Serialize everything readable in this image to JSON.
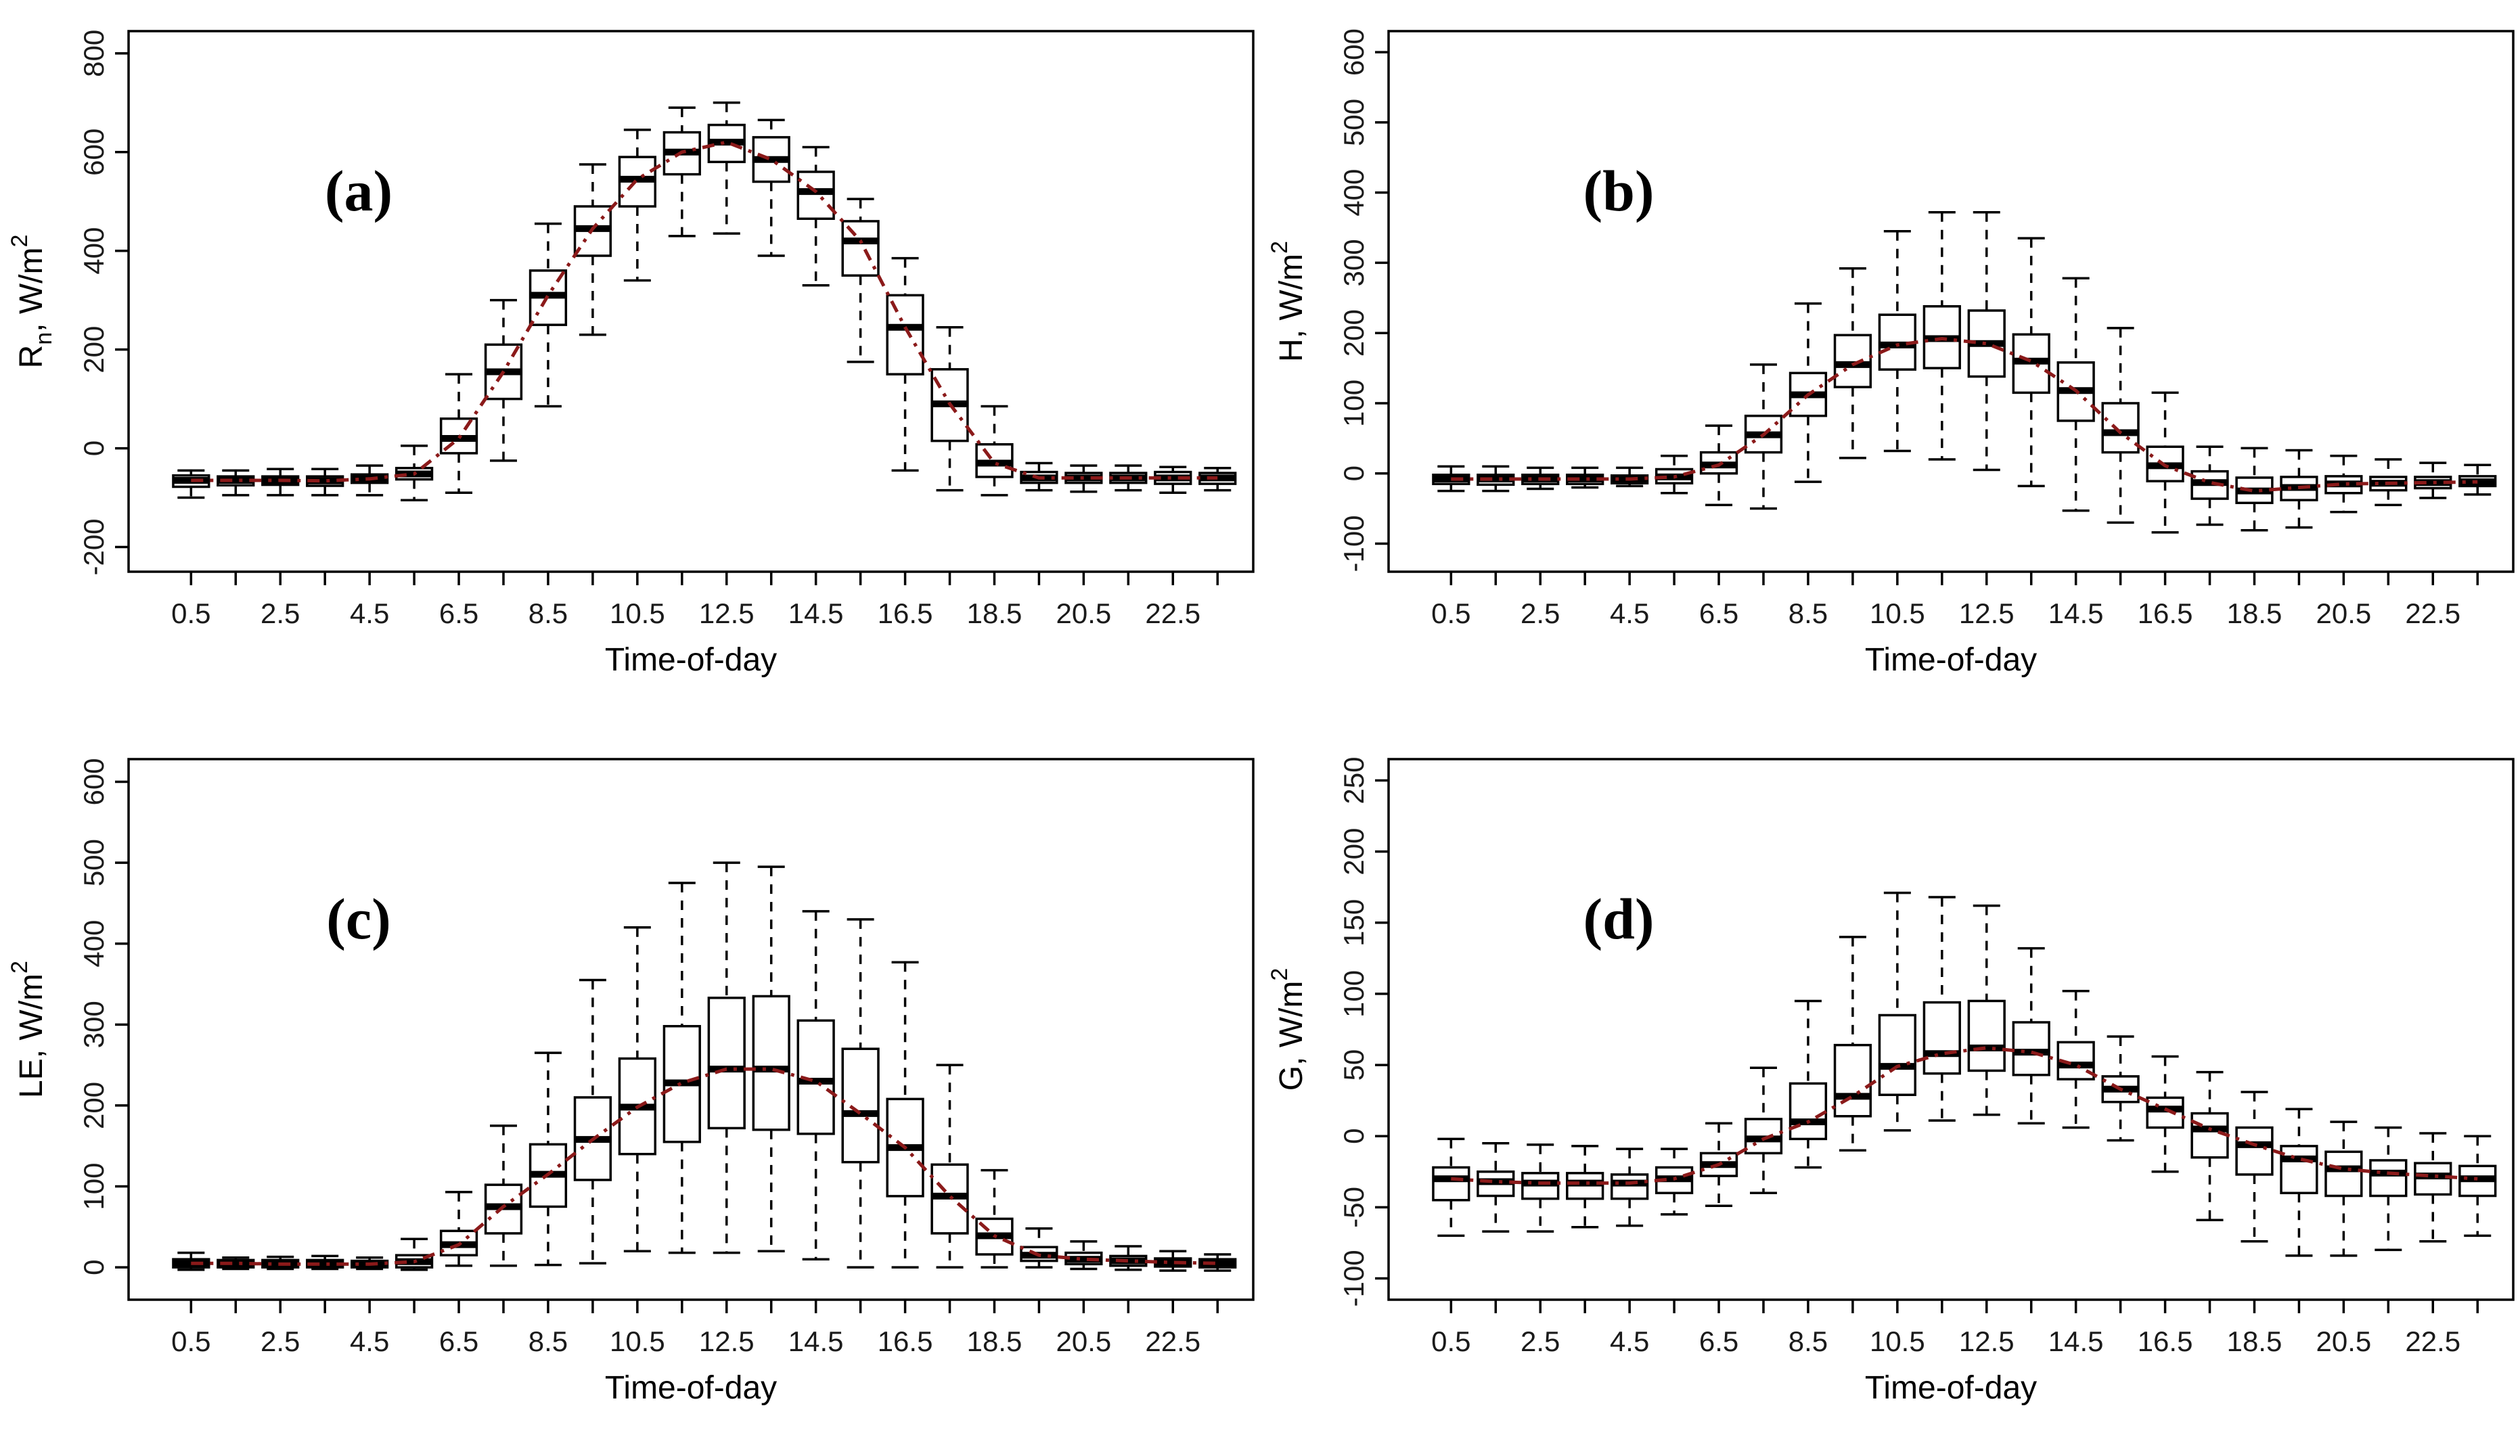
{
  "figure": {
    "background": "#ffffff",
    "xlabel": "Time-of-day",
    "panel_letters": [
      "(a)",
      "(b)",
      "(c)",
      "(d)"
    ]
  },
  "colors": {
    "box_stroke": "#000000",
    "median": "#000000",
    "whisker": "#000000",
    "axis": "#000000",
    "tick_label": "#1a1a1a",
    "trend_line": "#8B1A1A"
  },
  "chart_data": [
    {
      "type": "boxplot",
      "panel_label": "(a)",
      "xlabel": "Time-of-day",
      "ylabel_parts": [
        {
          "text": "R"
        },
        {
          "text": "n",
          "script": "sub"
        },
        {
          "text": ", W/m"
        },
        {
          "text": "2",
          "script": "sup"
        }
      ],
      "ylim": [
        -250,
        845
      ],
      "yticks": [
        -200,
        0,
        200,
        400,
        600,
        800
      ],
      "xlim": [
        -0.9,
        24.3
      ],
      "xtick_labels": [
        "0.5",
        "2.5",
        "4.5",
        "6.5",
        "8.5",
        "10.5",
        "12.5",
        "14.5",
        "16.5",
        "18.5",
        "20.5",
        "22.5"
      ],
      "x": [
        0.5,
        1.5,
        2.5,
        3.5,
        4.5,
        5.5,
        6.5,
        7.5,
        8.5,
        9.5,
        10.5,
        11.5,
        12.5,
        13.5,
        14.5,
        15.5,
        16.5,
        17.5,
        18.5,
        19.5,
        20.5,
        21.5,
        22.5,
        23.5
      ],
      "boxes_format": [
        "whisker_low",
        "q1",
        "median",
        "q3",
        "whisker_high"
      ],
      "boxes": [
        [
          -100,
          -78,
          -65,
          -55,
          -45
        ],
        [
          -95,
          -75,
          -65,
          -57,
          -45
        ],
        [
          -95,
          -74,
          -65,
          -57,
          -42
        ],
        [
          -95,
          -76,
          -66,
          -57,
          -42
        ],
        [
          -95,
          -70,
          -62,
          -53,
          -35
        ],
        [
          -105,
          -63,
          -52,
          -40,
          5
        ],
        [
          -90,
          -10,
          20,
          60,
          150
        ],
        [
          -25,
          100,
          155,
          210,
          300
        ],
        [
          85,
          250,
          310,
          360,
          455
        ],
        [
          230,
          390,
          445,
          490,
          575
        ],
        [
          340,
          490,
          545,
          590,
          645
        ],
        [
          430,
          555,
          600,
          640,
          690
        ],
        [
          435,
          580,
          620,
          655,
          700
        ],
        [
          390,
          540,
          585,
          630,
          665
        ],
        [
          330,
          465,
          520,
          560,
          610
        ],
        [
          175,
          350,
          420,
          460,
          505
        ],
        [
          -45,
          150,
          245,
          310,
          385
        ],
        [
          -85,
          15,
          90,
          160,
          245
        ],
        [
          -95,
          -58,
          -30,
          8,
          85
        ],
        [
          -85,
          -70,
          -60,
          -48,
          -30
        ],
        [
          -88,
          -70,
          -60,
          -50,
          -35
        ],
        [
          -85,
          -70,
          -60,
          -50,
          -35
        ],
        [
          -90,
          -72,
          -60,
          -48,
          -38
        ],
        [
          -85,
          -72,
          -60,
          -50,
          -40
        ]
      ],
      "trend_line": "through_medians"
    },
    {
      "type": "boxplot",
      "panel_label": "(b)",
      "xlabel": "Time-of-day",
      "ylabel_parts": [
        {
          "text": "H, W/m"
        },
        {
          "text": "2",
          "script": "sup"
        }
      ],
      "ylim": [
        -140,
        630
      ],
      "yticks": [
        -100,
        0,
        100,
        200,
        300,
        400,
        500,
        600
      ],
      "xlim": [
        -0.9,
        24.3
      ],
      "xtick_labels": [
        "0.5",
        "2.5",
        "4.5",
        "6.5",
        "8.5",
        "10.5",
        "12.5",
        "14.5",
        "16.5",
        "18.5",
        "20.5",
        "22.5"
      ],
      "x": [
        0.5,
        1.5,
        2.5,
        3.5,
        4.5,
        5.5,
        6.5,
        7.5,
        8.5,
        9.5,
        10.5,
        11.5,
        12.5,
        13.5,
        14.5,
        15.5,
        16.5,
        17.5,
        18.5,
        19.5,
        20.5,
        21.5,
        22.5,
        23.5
      ],
      "boxes_format": [
        "whisker_low",
        "q1",
        "median",
        "q3",
        "whisker_high"
      ],
      "boxes": [
        [
          -25,
          -15,
          -8,
          -2,
          10
        ],
        [
          -25,
          -16,
          -8,
          -2,
          10
        ],
        [
          -22,
          -15,
          -8,
          -2,
          8
        ],
        [
          -20,
          -15,
          -8,
          -2,
          8
        ],
        [
          -18,
          -14,
          -8,
          -3,
          8
        ],
        [
          -28,
          -14,
          -5,
          6,
          25
        ],
        [
          -45,
          0,
          12,
          30,
          68
        ],
        [
          -50,
          30,
          55,
          82,
          155
        ],
        [
          -12,
          82,
          112,
          143,
          242
        ],
        [
          22,
          123,
          155,
          197,
          292
        ],
        [
          32,
          148,
          183,
          226,
          345
        ],
        [
          20,
          150,
          192,
          238,
          372
        ],
        [
          5,
          138,
          185,
          232,
          372
        ],
        [
          -18,
          115,
          160,
          198,
          335
        ],
        [
          -53,
          75,
          118,
          158,
          278
        ],
        [
          -70,
          30,
          58,
          100,
          207
        ],
        [
          -84,
          -11,
          11,
          38,
          115
        ],
        [
          -73,
          -36,
          -13,
          3,
          38
        ],
        [
          -81,
          -42,
          -25,
          -6,
          36
        ],
        [
          -77,
          -38,
          -20,
          -5,
          33
        ],
        [
          -55,
          -28,
          -15,
          -4,
          25
        ],
        [
          -45,
          -24,
          -14,
          -5,
          20
        ],
        [
          -35,
          -21,
          -13,
          -5,
          15
        ],
        [
          -30,
          -18,
          -12,
          -4,
          12
        ]
      ],
      "trend_line": "through_medians"
    },
    {
      "type": "boxplot",
      "panel_label": "(c)",
      "xlabel": "Time-of-day",
      "ylabel_parts": [
        {
          "text": "LE, W/m"
        },
        {
          "text": "2",
          "script": "sup"
        }
      ],
      "ylim": [
        -40,
        628
      ],
      "yticks": [
        0,
        100,
        200,
        300,
        400,
        500,
        600
      ],
      "xlim": [
        -0.9,
        24.3
      ],
      "xtick_labels": [
        "0.5",
        "2.5",
        "4.5",
        "6.5",
        "8.5",
        "10.5",
        "12.5",
        "14.5",
        "16.5",
        "18.5",
        "20.5",
        "22.5"
      ],
      "x": [
        0.5,
        1.5,
        2.5,
        3.5,
        4.5,
        5.5,
        6.5,
        7.5,
        8.5,
        9.5,
        10.5,
        11.5,
        12.5,
        13.5,
        14.5,
        15.5,
        16.5,
        17.5,
        18.5,
        19.5,
        20.5,
        21.5,
        22.5,
        23.5
      ],
      "boxes_format": [
        "whisker_low",
        "q1",
        "median",
        "q3",
        "whisker_high"
      ],
      "boxes": [
        [
          -3,
          0,
          5,
          10,
          18
        ],
        [
          -2,
          0,
          5,
          9,
          12
        ],
        [
          -2,
          0,
          4,
          9,
          13
        ],
        [
          -2,
          0,
          4,
          9,
          14
        ],
        [
          -2,
          0,
          4,
          8,
          12
        ],
        [
          -3,
          0,
          7,
          15,
          35
        ],
        [
          2,
          15,
          28,
          45,
          93
        ],
        [
          2,
          42,
          75,
          102,
          175
        ],
        [
          3,
          75,
          115,
          152,
          265
        ],
        [
          5,
          108,
          158,
          210,
          355
        ],
        [
          20,
          140,
          198,
          258,
          420
        ],
        [
          18,
          155,
          228,
          298,
          475
        ],
        [
          18,
          172,
          245,
          333,
          500
        ],
        [
          20,
          170,
          245,
          335,
          495
        ],
        [
          10,
          165,
          230,
          305,
          440
        ],
        [
          0,
          130,
          190,
          270,
          430
        ],
        [
          0,
          88,
          148,
          208,
          377
        ],
        [
          0,
          42,
          88,
          127,
          250
        ],
        [
          0,
          16,
          39,
          60,
          120
        ],
        [
          0,
          8,
          15,
          25,
          48
        ],
        [
          -2,
          4,
          10,
          18,
          32
        ],
        [
          -3,
          2,
          8,
          14,
          26
        ],
        [
          -4,
          1,
          6,
          11,
          20
        ],
        [
          -4,
          0,
          5,
          10,
          16
        ]
      ],
      "trend_line": "through_medians"
    },
    {
      "type": "boxplot",
      "panel_label": "(d)",
      "xlabel": "Time-of-day",
      "ylabel_parts": [
        {
          "text": "G, W/m"
        },
        {
          "text": "2",
          "script": "sup"
        }
      ],
      "ylim": [
        -115,
        265
      ],
      "yticks": [
        -100,
        -50,
        0,
        50,
        100,
        150,
        200,
        250
      ],
      "xlim": [
        -0.9,
        24.3
      ],
      "xtick_labels": [
        "0.5",
        "2.5",
        "4.5",
        "6.5",
        "8.5",
        "10.5",
        "12.5",
        "14.5",
        "16.5",
        "18.5",
        "20.5",
        "22.5"
      ],
      "x": [
        0.5,
        1.5,
        2.5,
        3.5,
        4.5,
        5.5,
        6.5,
        7.5,
        8.5,
        9.5,
        10.5,
        11.5,
        12.5,
        13.5,
        14.5,
        15.5,
        16.5,
        17.5,
        18.5,
        19.5,
        20.5,
        21.5,
        22.5,
        23.5
      ],
      "boxes_format": [
        "whisker_low",
        "q1",
        "median",
        "q3",
        "whisker_high"
      ],
      "boxes": [
        [
          -70,
          -45,
          -30,
          -22,
          -2
        ],
        [
          -67,
          -42,
          -32,
          -25,
          -5
        ],
        [
          -67,
          -44,
          -33,
          -26,
          -6
        ],
        [
          -64,
          -44,
          -33,
          -26,
          -7
        ],
        [
          -63,
          -44,
          -33,
          -27,
          -9
        ],
        [
          -55,
          -40,
          -30,
          -22,
          -9
        ],
        [
          -49,
          -28,
          -20,
          -12,
          9
        ],
        [
          -40,
          -12,
          -2,
          12,
          48
        ],
        [
          -22,
          -2,
          10,
          37,
          95
        ],
        [
          -10,
          14,
          28,
          64,
          140
        ],
        [
          4,
          29,
          49,
          85,
          171
        ],
        [
          11,
          44,
          58,
          94,
          168
        ],
        [
          15,
          46,
          62,
          95,
          162
        ],
        [
          9,
          43,
          59,
          80,
          132
        ],
        [
          6,
          40,
          50,
          66,
          102
        ],
        [
          -3,
          24,
          33,
          42,
          70
        ],
        [
          -25,
          6,
          19,
          27,
          56
        ],
        [
          -59,
          -15,
          5,
          16,
          45
        ],
        [
          -74,
          -27,
          -6,
          6,
          31
        ],
        [
          -84,
          -40,
          -16,
          -7,
          19
        ],
        [
          -84,
          -42,
          -23,
          -11,
          10
        ],
        [
          -80,
          -42,
          -26,
          -17,
          6
        ],
        [
          -74,
          -41,
          -28,
          -19,
          2
        ],
        [
          -70,
          -42,
          -30,
          -21,
          0
        ]
      ],
      "trend_line": "through_medians"
    }
  ]
}
